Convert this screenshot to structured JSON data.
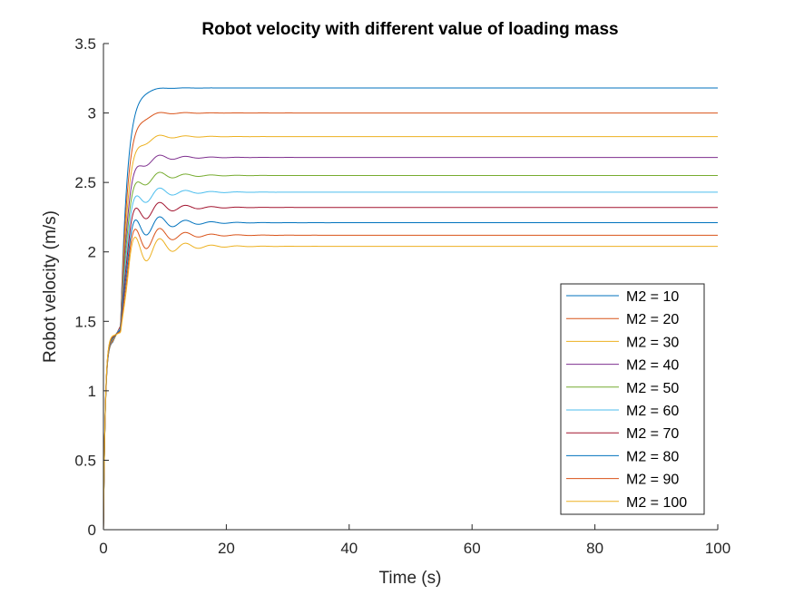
{
  "chart_data": {
    "type": "line",
    "title": "Robot velocity with different value of loading mass",
    "xlabel": "Time (s)",
    "ylabel": "Robot velocity (m/s)",
    "xlim": [
      0,
      100
    ],
    "ylim": [
      0,
      3.5
    ],
    "xticks": [
      0,
      20,
      40,
      60,
      80,
      100
    ],
    "xtick_labels": [
      "0",
      "20",
      "40",
      "60",
      "80",
      "100"
    ],
    "yticks": [
      0,
      0.5,
      1,
      1.5,
      2,
      2.5,
      3,
      3.5
    ],
    "ytick_labels": [
      "0",
      "0.5",
      "1",
      "1.5",
      "2",
      "2.5",
      "3",
      "3.5"
    ],
    "grid": false,
    "legend_position": "bottom-right",
    "series": [
      {
        "name": "M2 = 10",
        "color": "#0072BD",
        "steady": 3.18,
        "dip": 1.47,
        "osc": 0.004
      },
      {
        "name": "M2 = 20",
        "color": "#D95319",
        "steady": 3.0,
        "dip": 1.47,
        "osc": 0.01
      },
      {
        "name": "M2 = 30",
        "color": "#EDB120",
        "steady": 2.83,
        "dip": 1.46,
        "osc": 0.018
      },
      {
        "name": "M2 = 40",
        "color": "#7E2F8E",
        "steady": 2.68,
        "dip": 1.46,
        "osc": 0.026
      },
      {
        "name": "M2 = 50",
        "color": "#77AC30",
        "steady": 2.55,
        "dip": 1.45,
        "osc": 0.034
      },
      {
        "name": "M2 = 60",
        "color": "#4DBEEE",
        "steady": 2.43,
        "dip": 1.45,
        "osc": 0.042
      },
      {
        "name": "M2 = 70",
        "color": "#A2142F",
        "steady": 2.32,
        "dip": 1.44,
        "osc": 0.05
      },
      {
        "name": "M2 = 80",
        "color": "#0072BD",
        "steady": 2.21,
        "dip": 1.44,
        "osc": 0.058
      },
      {
        "name": "M2 = 90",
        "color": "#D95319",
        "steady": 2.12,
        "dip": 1.43,
        "osc": 0.066
      },
      {
        "name": "M2 = 100",
        "color": "#EDB120",
        "steady": 2.04,
        "dip": 1.42,
        "osc": 0.074
      }
    ]
  }
}
